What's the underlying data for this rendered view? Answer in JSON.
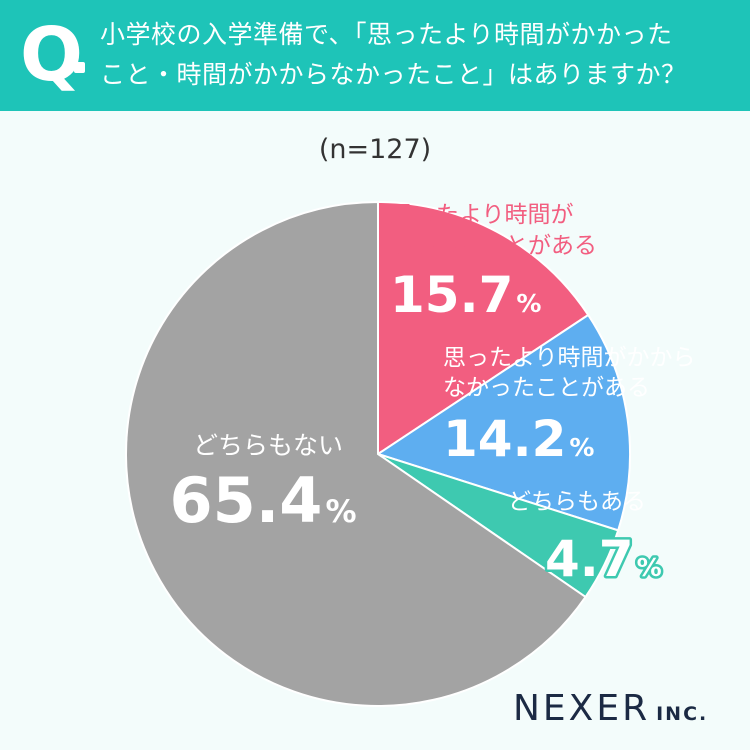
{
  "question": {
    "mark": "Q",
    "line1": "小学校の入学準備で、「思ったより時間がかかった",
    "line2": "こと・時間がかからなかったこと」はありますか？"
  },
  "sample_label": "(n=127)",
  "brand": {
    "name": "NEXER",
    "suffix": "INC."
  },
  "colors": {
    "header": "#1ec4b8",
    "slice_pink": "#f25e80",
    "slice_blue": "#5eaef0",
    "slice_teal": "#3ec9b0",
    "slice_gray": "#a3a3a3"
  },
  "chart_data": {
    "type": "pie",
    "slices": [
      {
        "label": "思ったより時間がかかったことがある",
        "label_lines": [
          "思ったより時間が",
          "かかったことがある"
        ],
        "value": 15.7,
        "value_text": "15.7",
        "color": "#f25e80"
      },
      {
        "label": "思ったより時間がかからなかったことがある",
        "label_lines": [
          "思ったより時間がかから",
          "なかったことがある"
        ],
        "value": 14.2,
        "value_text": "14.2",
        "color": "#5eaef0"
      },
      {
        "label": "どちらもある",
        "label_lines": [
          "どちらもある"
        ],
        "value": 4.7,
        "value_text": "4.7",
        "color": "#3ec9b0"
      },
      {
        "label": "どちらもない",
        "label_lines": [
          "どちらもない"
        ],
        "value": 65.4,
        "value_text": "65.4",
        "color": "#a3a3a3"
      }
    ],
    "unit": "%"
  }
}
